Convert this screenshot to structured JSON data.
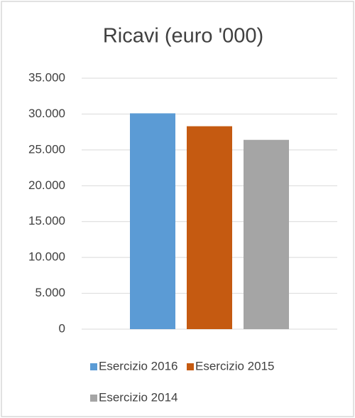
{
  "chart_data": {
    "type": "bar",
    "title": "Ricavi (euro '000)",
    "categories": [
      null
    ],
    "series": [
      {
        "name": "Esercizio 2016",
        "color": "#5b9bd5",
        "values": [
          30100
        ]
      },
      {
        "name": "Esercizio 2015",
        "color": "#c55a11",
        "values": [
          28300
        ]
      },
      {
        "name": "Esercizio 2014",
        "color": "#a5a5a5",
        "values": [
          26400
        ]
      }
    ],
    "ylim": [
      0,
      35000
    ],
    "yticks": [
      0,
      {
        "value": 5000,
        "label": "5.000"
      },
      {
        "value": 10000,
        "label": "10.000"
      },
      {
        "value": 15000,
        "label": "15.000"
      },
      {
        "value": 20000,
        "label": "20.000"
      },
      {
        "value": 25000,
        "label": "25.000"
      },
      {
        "value": 30000,
        "label": "30.000"
      },
      {
        "value": 35000,
        "label": "35.000"
      }
    ],
    "grid": true,
    "legend": "bottom"
  }
}
